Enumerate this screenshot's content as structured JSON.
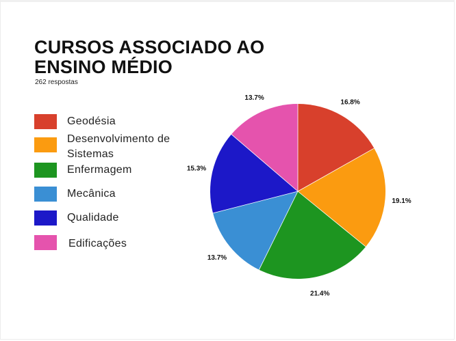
{
  "chart_data": {
    "type": "pie",
    "title_lines": [
      "CURSOS ASSOCIADO AO",
      "ENSINO MÉDIO"
    ],
    "subtitle": "262 respostas",
    "categories": [
      "Geodésia",
      "Desenvolvimento de Sistemas",
      "Enfermagem",
      "Mecânica",
      "Qualidade",
      "Edificações"
    ],
    "legend_lines": [
      [
        "Geodésia"
      ],
      [
        "Desenvolvimento de",
        "Sistemas"
      ],
      [
        "Enfermagem"
      ],
      [
        "Mecânica"
      ],
      [
        "Qualidade"
      ],
      [
        "Edificações"
      ]
    ],
    "values": [
      16.8,
      19.1,
      21.4,
      13.7,
      15.3,
      13.7
    ],
    "labels": [
      "16.8%",
      "19.1%",
      "21.4%",
      "13.7%",
      "15.3%",
      "13.7%"
    ],
    "colors": [
      "#d8402c",
      "#fb9b10",
      "#1d9520",
      "#3a8fd4",
      "#1c18c8",
      "#e553ad"
    ],
    "legend_placement": "left",
    "start_angle": "top, clockwise"
  }
}
